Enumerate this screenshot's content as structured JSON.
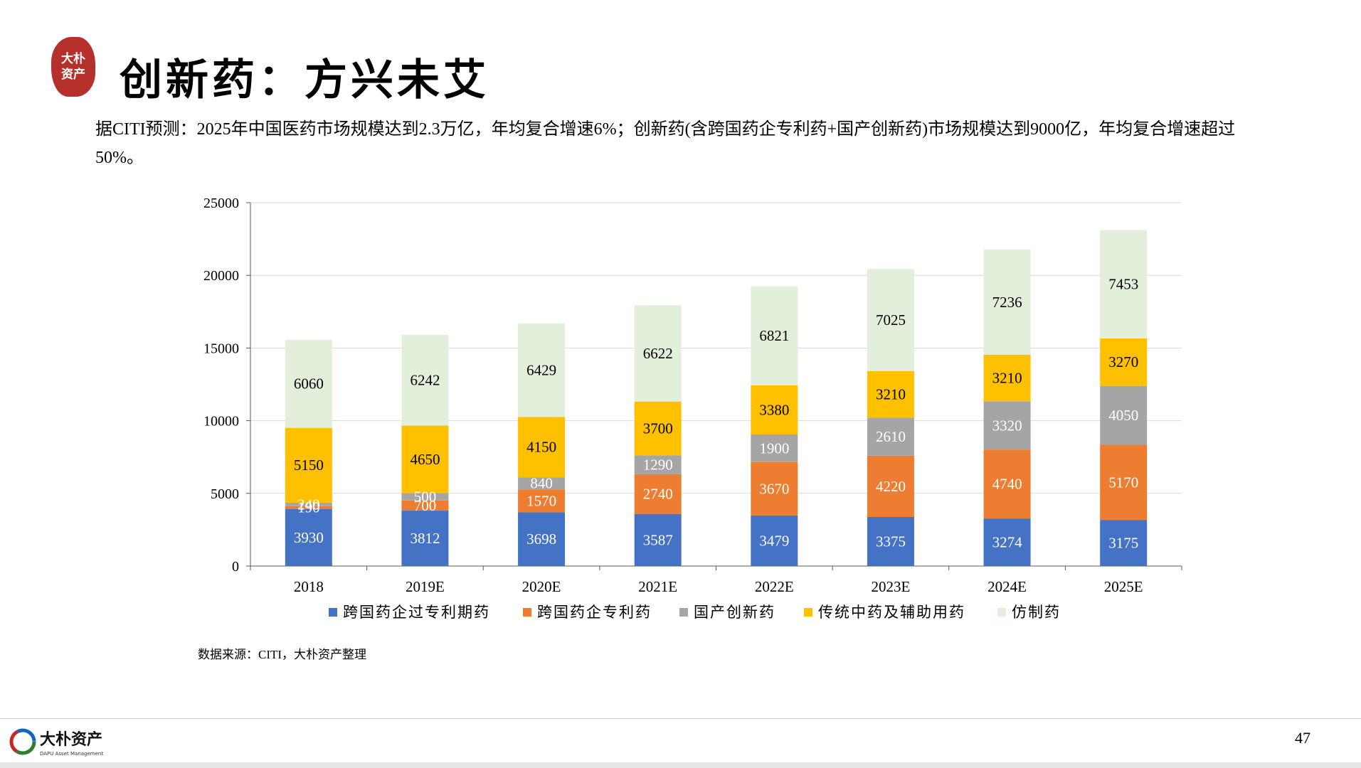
{
  "header": {
    "seal_text": "大朴资产",
    "title": "创新药：方兴未艾",
    "subtitle": "据CITI预测：2025年中国医药市场规模达到2.3万亿，年均复合增速6%；创新药(含跨国药企专利药+国产创新药)市场规模达到9000亿，年均复合增速超过50%。"
  },
  "source": "数据来源：CITI，大朴资产整理",
  "footer": {
    "logo_cn": "大朴资产",
    "logo_en": "DAPU Asset Management",
    "page_number": "47"
  },
  "colors": {
    "series": [
      "#4472c4",
      "#ed7d31",
      "#a5a5a5",
      "#ffc000",
      "#e2efda"
    ],
    "label_light": "#ffffff",
    "label_dark": "#000000",
    "grid": "#d9d9d9",
    "seal": "#b5302b"
  },
  "chart_data": {
    "type": "bar",
    "stacked": true,
    "categories": [
      "2018",
      "2019E",
      "2020E",
      "2021E",
      "2022E",
      "2023E",
      "2024E",
      "2025E"
    ],
    "ylim": [
      0,
      25000
    ],
    "yticks": [
      "0",
      "5000",
      "10000",
      "15000",
      "20000",
      "25000"
    ],
    "grid": true,
    "legend_position": "bottom",
    "series": [
      {
        "name": "跨国药企过专利期药",
        "values": [
          3930,
          3812,
          3698,
          3587,
          3479,
          3375,
          3274,
          3175
        ],
        "labels": [
          "3930",
          "3812",
          "3698",
          "3587",
          "3479",
          "3375",
          "3274",
          "3175"
        ]
      },
      {
        "name": "跨国药企专利药",
        "values": [
          190,
          700,
          1570,
          2740,
          3670,
          4220,
          4740,
          5170
        ],
        "labels": [
          "190",
          "700",
          "1570",
          "2740",
          "3670",
          "4220",
          "4740",
          "5170"
        ]
      },
      {
        "name": "国产创新药",
        "values": [
          240,
          500,
          840,
          1290,
          1900,
          2610,
          3320,
          4050
        ],
        "labels": [
          "240",
          "500",
          "840",
          "1290",
          "1900",
          "2610",
          "3320",
          "4050"
        ]
      },
      {
        "name": "传统中药及辅助用药",
        "values": [
          5150,
          4650,
          4150,
          3700,
          3380,
          3210,
          3210,
          3270
        ],
        "labels": [
          "5150",
          "4650",
          "4150",
          "3700",
          "3380",
          "3210",
          "3210",
          "3270"
        ]
      },
      {
        "name": "仿制药",
        "values": [
          6060,
          6242,
          6429,
          6622,
          6821,
          7025,
          7236,
          7453
        ],
        "labels": [
          "6060",
          "6242",
          "6429",
          "6622",
          "6821",
          "7025",
          "7236",
          "7453"
        ]
      }
    ]
  }
}
